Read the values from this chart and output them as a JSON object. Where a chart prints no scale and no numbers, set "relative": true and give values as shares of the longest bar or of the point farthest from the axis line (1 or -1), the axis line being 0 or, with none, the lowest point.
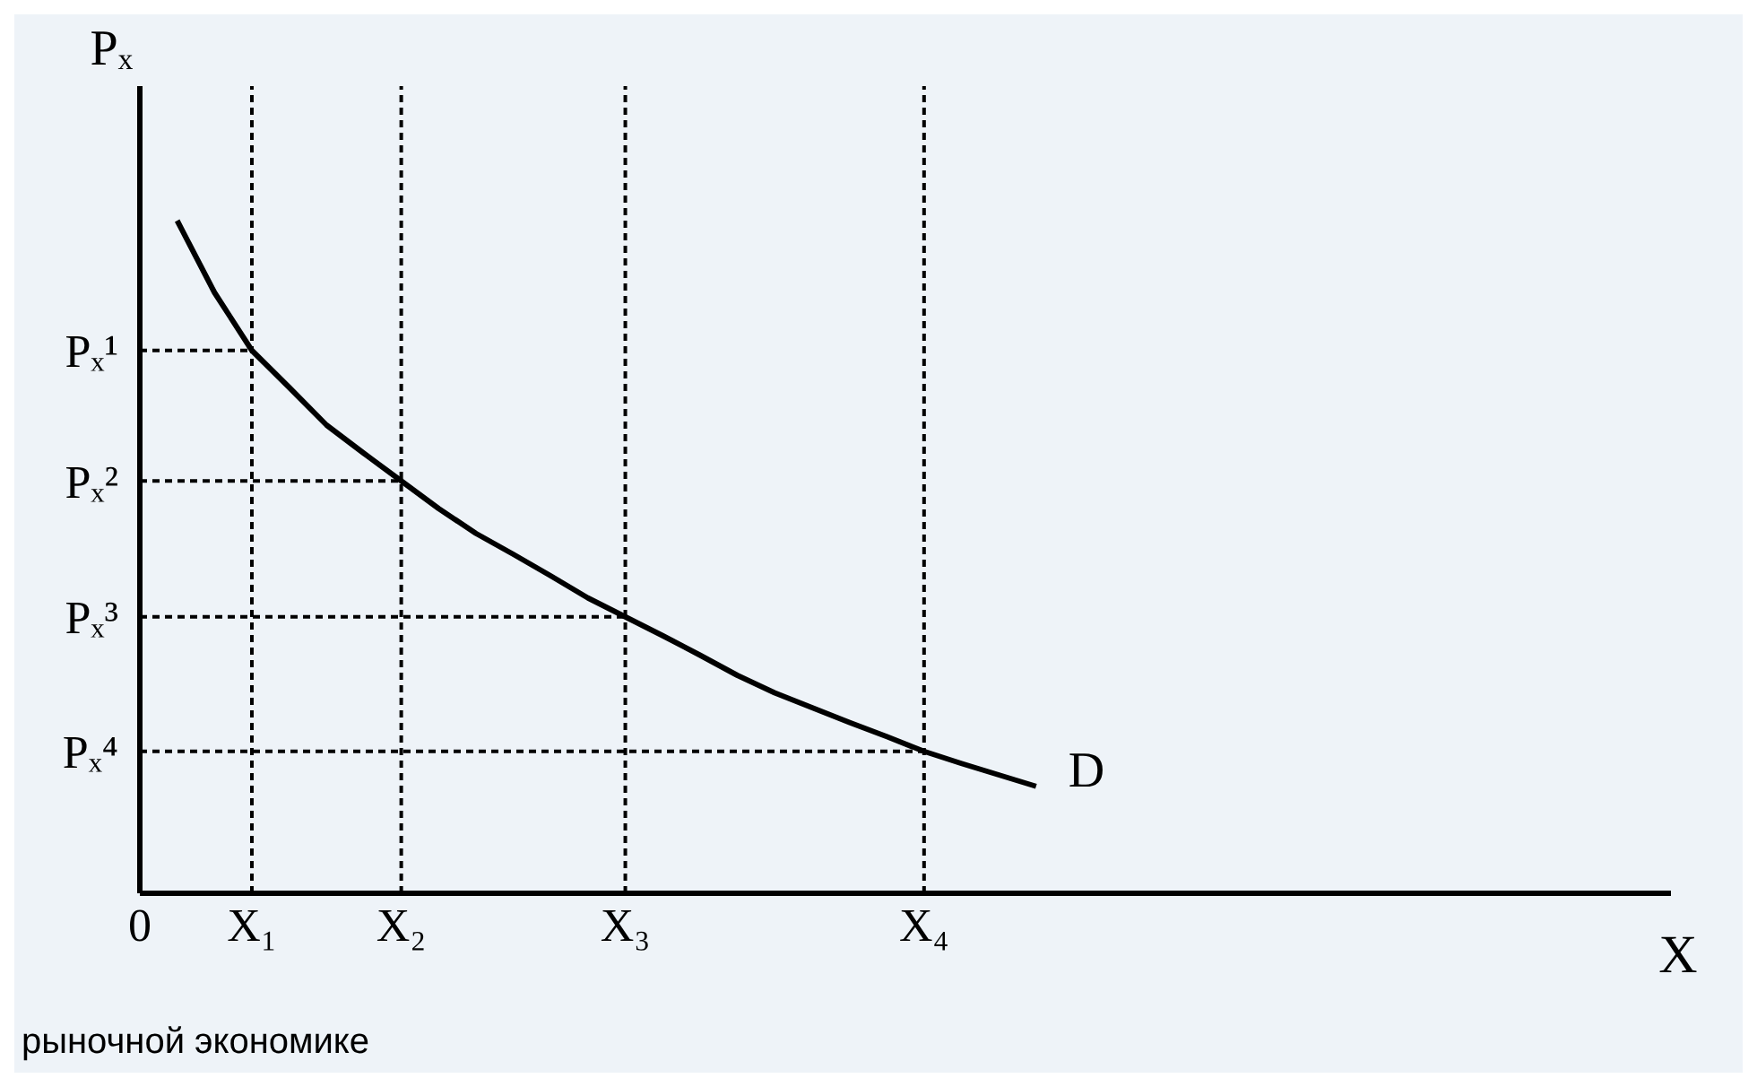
{
  "chart_data": {
    "type": "line",
    "relative": true,
    "xlabel": "X",
    "ylabel": "Pₓ",
    "categories": [
      "0",
      null,
      null,
      "X₁",
      null,
      null,
      null,
      "X₂",
      null,
      null,
      null,
      null,
      null,
      "X₃",
      null,
      null,
      null,
      null,
      null,
      null,
      null,
      "X₄",
      null,
      null,
      null,
      null,
      null,
      null,
      null,
      null,
      null,
      null,
      null,
      null,
      null,
      null,
      null,
      null,
      null,
      null,
      null,
      null
    ],
    "series": [
      {
        "name": "D",
        "color": "#000000",
        "values": [
          null,
          1,
          0.893,
          0.807,
          0.752,
          0.696,
          0.654,
          0.613,
          0.572,
          0.535,
          0.504,
          0.472,
          0.439,
          0.411,
          0.383,
          0.354,
          0.324,
          0.298,
          0.276,
          0.254,
          0.233,
          0.211,
          0.193,
          0.176,
          0.159,
          null,
          null,
          null,
          null,
          null,
          null,
          null,
          null,
          null,
          null,
          null,
          null,
          null,
          null,
          null,
          null,
          null
        ]
      }
    ],
    "ref_lines": [
      {
        "axis": "x",
        "value": "X₁",
        "line_style": "dashed",
        "color": "#000000"
      },
      {
        "axis": "x",
        "value": "X₂",
        "line_style": "dashed",
        "color": "#000000"
      },
      {
        "axis": "x",
        "value": "X₃",
        "line_style": "dashed",
        "color": "#000000"
      },
      {
        "axis": "x",
        "value": "X₄",
        "line_style": "dashed",
        "color": "#000000"
      },
      {
        "axis": "y",
        "value": 0.807,
        "label": "Pₓ¹",
        "line_style": "dashed",
        "color": "#000000"
      },
      {
        "axis": "y",
        "value": 0.613,
        "label": "Pₓ²",
        "line_style": "dashed",
        "color": "#000000"
      },
      {
        "axis": "y",
        "value": 0.411,
        "label": "Pₓ³",
        "line_style": "dashed",
        "color": "#000000"
      },
      {
        "axis": "y",
        "value": 0.211,
        "label": "Pₓ⁴",
        "line_style": "dashed",
        "color": "#000000"
      }
    ],
    "annotations": [
      "рыночной экономике"
    ],
    "legend": false,
    "grid": false,
    "marker": "none",
    "line_style": "solid"
  }
}
